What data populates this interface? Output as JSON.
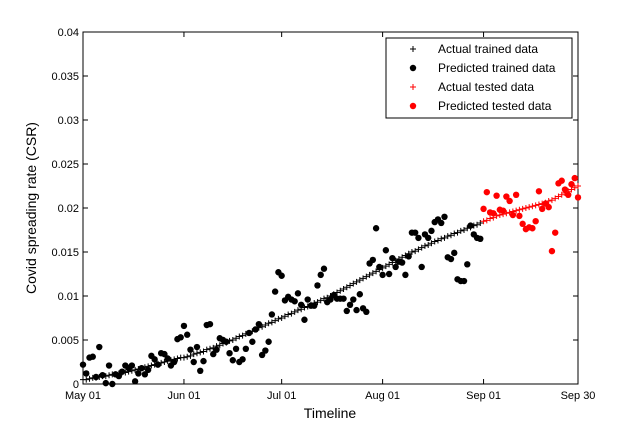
{
  "chart_data": {
    "type": "scatter",
    "title": "",
    "xlabel": "Timeline",
    "ylabel": "Covid spreading rate (CSR)",
    "x_tick_labels": [
      "May 01",
      "Jun 01",
      "Jul 01",
      "Aug 01",
      "Sep 01",
      "Sep 30"
    ],
    "x_tick_days": [
      0,
      31,
      61,
      92,
      123,
      152
    ],
    "xlim_days": [
      0,
      152
    ],
    "ylim": [
      0,
      0.04
    ],
    "y_ticks": [
      0,
      0.005,
      0.01,
      0.015,
      0.02,
      0.025,
      0.03,
      0.035,
      0.04
    ],
    "y_tick_labels": [
      "0",
      "0.005",
      "0.01",
      "0.015",
      "0.02",
      "0.025",
      "0.03",
      "0.035",
      "0.04"
    ],
    "grid": false,
    "legend_position": "top-right",
    "colors": {
      "trained": "#000000",
      "tested": "#ff0000"
    },
    "series": [
      {
        "name": "Actual trained data",
        "marker": "plus",
        "color": "#000000",
        "x_days": [
          0,
          1,
          2,
          3,
          4,
          5,
          6,
          7,
          8,
          9,
          10,
          11,
          12,
          13,
          14,
          15,
          16,
          17,
          18,
          19,
          20,
          21,
          22,
          23,
          24,
          25,
          26,
          27,
          28,
          29,
          30,
          31,
          32,
          33,
          34,
          35,
          36,
          37,
          38,
          39,
          40,
          41,
          42,
          43,
          44,
          45,
          46,
          47,
          48,
          49,
          50,
          51,
          52,
          53,
          54,
          55,
          56,
          57,
          58,
          59,
          60,
          61,
          62,
          63,
          64,
          65,
          66,
          67,
          68,
          69,
          70,
          71,
          72,
          73,
          74,
          75,
          76,
          77,
          78,
          79,
          80,
          81,
          82,
          83,
          84,
          85,
          86,
          87,
          88,
          89,
          90,
          91,
          92,
          93,
          94,
          95,
          96,
          97,
          98,
          99,
          100,
          101,
          102,
          103,
          104,
          105,
          106,
          107,
          108,
          109,
          110,
          111,
          112,
          113,
          114,
          115,
          116,
          117,
          118,
          119,
          120,
          121,
          122
        ],
        "y": [
          0.0005,
          0.0005,
          0.0006,
          0.0007,
          0.0007,
          0.0008,
          0.0009,
          0.0009,
          0.001,
          0.0011,
          0.0011,
          0.0012,
          0.0013,
          0.0013,
          0.0014,
          0.0015,
          0.0016,
          0.0017,
          0.0018,
          0.0019,
          0.002,
          0.0021,
          0.0022,
          0.0023,
          0.0024,
          0.0025,
          0.0026,
          0.0027,
          0.0028,
          0.0029,
          0.003,
          0.003,
          0.0031,
          0.0032,
          0.0034,
          0.0035,
          0.0036,
          0.0037,
          0.0039,
          0.004,
          0.0041,
          0.0043,
          0.0044,
          0.0046,
          0.0047,
          0.0049,
          0.005,
          0.0052,
          0.0054,
          0.0055,
          0.0057,
          0.0058,
          0.006,
          0.0062,
          0.0064,
          0.0065,
          0.0067,
          0.0069,
          0.007,
          0.0072,
          0.0074,
          0.0075,
          0.0077,
          0.0079,
          0.008,
          0.0082,
          0.0084,
          0.0085,
          0.0087,
          0.0088,
          0.009,
          0.0092,
          0.0093,
          0.0095,
          0.0097,
          0.0098,
          0.01,
          0.0102,
          0.0104,
          0.0106,
          0.0108,
          0.011,
          0.0112,
          0.0114,
          0.0116,
          0.0118,
          0.012,
          0.0122,
          0.0124,
          0.0126,
          0.0128,
          0.013,
          0.0132,
          0.0134,
          0.0136,
          0.0138,
          0.014,
          0.0142,
          0.0144,
          0.0146,
          0.0148,
          0.015,
          0.0151,
          0.0153,
          0.0155,
          0.0157,
          0.0158,
          0.016,
          0.0162,
          0.0163,
          0.0165,
          0.0166,
          0.0168,
          0.0169,
          0.0171,
          0.0172,
          0.0174,
          0.0175,
          0.0177,
          0.0178,
          0.018,
          0.0181,
          0.0183
        ]
      },
      {
        "name": "Predicted trained data",
        "marker": "dot",
        "color": "#000000",
        "x_days": [
          0,
          1,
          2,
          3,
          4,
          5,
          6,
          7,
          8,
          9,
          10,
          11,
          12,
          13,
          14,
          15,
          16,
          17,
          18,
          19,
          20,
          21,
          22,
          23,
          24,
          25,
          26,
          27,
          28,
          29,
          30,
          31,
          32,
          33,
          34,
          35,
          36,
          37,
          38,
          39,
          40,
          41,
          42,
          43,
          44,
          45,
          46,
          47,
          48,
          49,
          50,
          51,
          52,
          53,
          54,
          55,
          56,
          57,
          58,
          59,
          60,
          61,
          62,
          63,
          64,
          65,
          66,
          67,
          68,
          69,
          70,
          71,
          72,
          73,
          74,
          75,
          76,
          77,
          78,
          79,
          80,
          81,
          82,
          83,
          84,
          85,
          86,
          87,
          88,
          89,
          90,
          91,
          92,
          93,
          94,
          95,
          96,
          97,
          98,
          99,
          100,
          101,
          102,
          103,
          104,
          105,
          106,
          107,
          108,
          109,
          110,
          111,
          112,
          113,
          114,
          115,
          116,
          117,
          118,
          119,
          120,
          121,
          122
        ],
        "y": [
          0.0022,
          0.0012,
          0.003,
          0.0031,
          0.0008,
          0.0042,
          0.001,
          0.0001,
          0.0021,
          0.0,
          0.0011,
          0.0009,
          0.0014,
          0.0021,
          0.0018,
          0.0021,
          0.0003,
          0.0012,
          0.0018,
          0.0011,
          0.0016,
          0.0032,
          0.0028,
          0.0022,
          0.0035,
          0.0034,
          0.0029,
          0.0021,
          0.0025,
          0.0051,
          0.0053,
          0.0066,
          0.0056,
          0.0039,
          0.0025,
          0.0042,
          0.0015,
          0.0026,
          0.0067,
          0.0068,
          0.0034,
          0.0039,
          0.0052,
          0.005,
          0.0048,
          0.0035,
          0.0027,
          0.004,
          0.0025,
          0.0028,
          0.004,
          0.0058,
          0.0048,
          0.0062,
          0.0068,
          0.0033,
          0.0038,
          0.0048,
          0.0079,
          0.0105,
          0.0127,
          0.0123,
          0.0095,
          0.0099,
          0.0096,
          0.0094,
          0.0103,
          0.009,
          0.0073,
          0.0096,
          0.0089,
          0.0089,
          0.0112,
          0.0124,
          0.0131,
          0.0093,
          0.0096,
          0.0101,
          0.0097,
          0.0097,
          0.0097,
          0.0083,
          0.009,
          0.0096,
          0.0084,
          0.0102,
          0.0086,
          0.0082,
          0.0137,
          0.0141,
          0.0177,
          0.0133,
          0.0124,
          0.0152,
          0.0125,
          0.0143,
          0.0133,
          0.0139,
          0.0138,
          0.0124,
          0.0145,
          0.0172,
          0.0172,
          0.0166,
          0.0133,
          0.017,
          0.0166,
          0.0174,
          0.0184,
          0.0187,
          0.0183,
          0.019,
          0.0144,
          0.0142,
          0.0149,
          0.0119,
          0.0117,
          0.0117,
          0.0136,
          0.018,
          0.017,
          0.0166,
          0.0165
        ]
      },
      {
        "name": "Actual tested data",
        "marker": "plus",
        "color": "#ff0000",
        "x_days": [
          123,
          124,
          125,
          126,
          127,
          128,
          129,
          130,
          131,
          132,
          133,
          134,
          135,
          136,
          137,
          138,
          139,
          140,
          141,
          142,
          143,
          144,
          145,
          146,
          147,
          148,
          149,
          150,
          151,
          152
        ],
        "y": [
          0.0185,
          0.0186,
          0.0188,
          0.0189,
          0.0191,
          0.0192,
          0.0193,
          0.0194,
          0.0195,
          0.0196,
          0.0197,
          0.0198,
          0.0199,
          0.02,
          0.0201,
          0.0202,
          0.0203,
          0.0204,
          0.0205,
          0.0206,
          0.0208,
          0.0209,
          0.0211,
          0.0213,
          0.0215,
          0.0217,
          0.0219,
          0.0221,
          0.0223,
          0.0225
        ]
      },
      {
        "name": "Predicted tested data",
        "marker": "dot",
        "color": "#ff0000",
        "x_days": [
          123,
          124,
          125,
          126,
          127,
          128,
          129,
          130,
          131,
          132,
          133,
          134,
          135,
          136,
          137,
          138,
          139,
          140,
          141,
          142,
          143,
          144,
          145,
          146,
          147,
          148,
          149,
          150,
          151,
          152
        ],
        "y": [
          0.0199,
          0.0218,
          0.0195,
          0.0194,
          0.0214,
          0.0198,
          0.0197,
          0.0213,
          0.0208,
          0.0192,
          0.0215,
          0.0191,
          0.0182,
          0.0176,
          0.0178,
          0.0177,
          0.0185,
          0.0219,
          0.0199,
          0.0205,
          0.0201,
          0.0151,
          0.0172,
          0.0228,
          0.0231,
          0.0221,
          0.0215,
          0.0227,
          0.0234,
          0.0212
        ]
      }
    ]
  }
}
